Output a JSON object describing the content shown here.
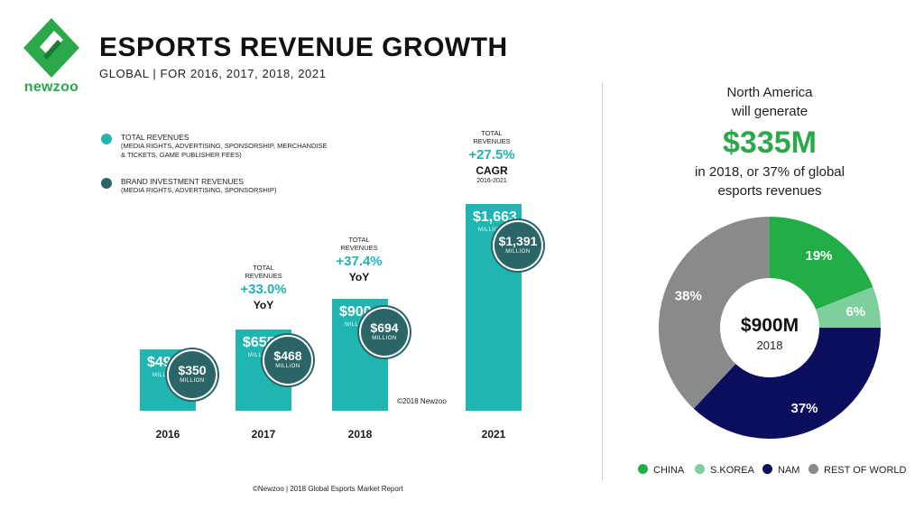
{
  "brand": {
    "logo_text": "newzoo"
  },
  "header": {
    "title": "ESPORTS REVENUE GROWTH",
    "subtitle": "GLOBAL | FOR 2016, 2017, 2018, 2021"
  },
  "legend": [
    {
      "title": "TOTAL REVENUES",
      "detail": "(MEDIA RIGHTS, ADVERTISING, SPONSORSHIP, MERCHANDISE & TICKETS, GAME PUBLISHER FEES)",
      "color": "#21b5b1"
    },
    {
      "title": "BRAND INVESTMENT REVENUES",
      "detail": "(MEDIA RIGHTS, ADVERTISING, SPONSORSHIP)",
      "color": "#2b6567"
    }
  ],
  "chart_data": [
    {
      "type": "bar",
      "title": "ESPORTS REVENUE GROWTH",
      "subtitle": "GLOBAL | FOR 2016, 2017, 2018, 2021",
      "categories": [
        "2016",
        "2017",
        "2018",
        "2021"
      ],
      "series": [
        {
          "name": "TOTAL REVENUES",
          "values": [
            493,
            655,
            900,
            1663
          ],
          "labels": [
            "$493",
            "$655",
            "$900",
            "$1,663"
          ],
          "color": "#21b5b1"
        },
        {
          "name": "BRAND INVESTMENT REVENUES",
          "values": [
            350,
            468,
            694,
            1391
          ],
          "labels": [
            "$350",
            "$468",
            "$694",
            "$1,391"
          ],
          "color": "#2b6567"
        }
      ],
      "unit": "MILLION",
      "growth_annotations": [
        {
          "caption": "TOTAL REVENUES",
          "value": "+33.0%",
          "type": "YoY",
          "sub": ""
        },
        {
          "caption": "TOTAL REVENUES",
          "value": "+37.4%",
          "type": "YoY",
          "sub": ""
        },
        {
          "caption": "TOTAL REVENUES",
          "value": "+27.5%",
          "type": "CAGR",
          "sub": "2016-2021"
        }
      ],
      "copyright": "©2018 Newzoo"
    },
    {
      "type": "pie",
      "center_value": "$900M",
      "center_label": "2018",
      "slices": [
        {
          "name": "CHINA",
          "value": 19,
          "label": "19%",
          "color": "#22ad47"
        },
        {
          "name": "S.KOREA",
          "value": 6,
          "label": "6%",
          "color": "#7dcf9c"
        },
        {
          "name": "NAM",
          "value": 37,
          "label": "37%",
          "color": "#0b0e5c"
        },
        {
          "name": "REST OF WORLD",
          "value": 38,
          "label": "38%",
          "color": "#8a8a8a"
        }
      ]
    }
  ],
  "north_america": {
    "line1": "North America",
    "line2": "will generate",
    "amount": "$335M",
    "line3": "in 2018, or 37% of global",
    "line4": "esports revenues"
  },
  "footer": "©Newzoo | 2018 Global Esports Market Report"
}
